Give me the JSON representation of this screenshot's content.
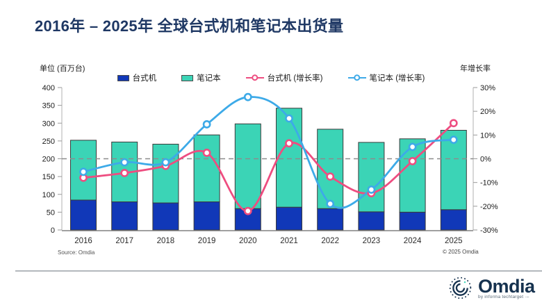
{
  "title": "2016年 – 2025年 全球台式机和笔记本出货量",
  "source": "Source: Omdia",
  "copyright": "© 2025 Omdia",
  "logo": {
    "name": "Omdia",
    "tagline": "by informa techtarget ·–"
  },
  "colors": {
    "title": "#1f3864",
    "axis_line": "#c2c2c2",
    "baseline": "#a0a0a0",
    "zero_dash_line": "#8c8c8c",
    "tick_text": "#1a1a1a"
  },
  "chart_data": {
    "type": "bar",
    "subtype": "stacked-bars-with-growth-lines",
    "categories": [
      "2016",
      "2017",
      "2018",
      "2019",
      "2020",
      "2021",
      "2022",
      "2023",
      "2024",
      "2025"
    ],
    "bar_series": [
      {
        "name": "台式机",
        "color": "#1138b8",
        "values": [
          84,
          79,
          76,
          79,
          60,
          64,
          60,
          51,
          50,
          57
        ]
      },
      {
        "name": "笔记本",
        "color": "#3bd4b6",
        "values": [
          168,
          168,
          165,
          188,
          238,
          278,
          223,
          195,
          206,
          223
        ]
      }
    ],
    "line_series": [
      {
        "name": "台式机 (增长率)",
        "color": "#ee4d80",
        "values": [
          -8,
          -6,
          -3,
          2.5,
          -22,
          6.5,
          -7.5,
          -14.5,
          -1,
          15
        ]
      },
      {
        "name": "笔记本 (增长率)",
        "color": "#3daae8",
        "values": [
          -5.5,
          -1.5,
          -1.5,
          14.5,
          26,
          17,
          -19,
          -13,
          5,
          8
        ]
      }
    ],
    "left_axis": {
      "label": "单位 (百万台)",
      "min": 0,
      "max": 400,
      "step": 50
    },
    "right_axis": {
      "label": "年增长率",
      "min": -30,
      "max": 30,
      "step": 10,
      "format": "percent"
    },
    "zero_line_dashed": true,
    "grid": false,
    "legend_position": "top"
  }
}
